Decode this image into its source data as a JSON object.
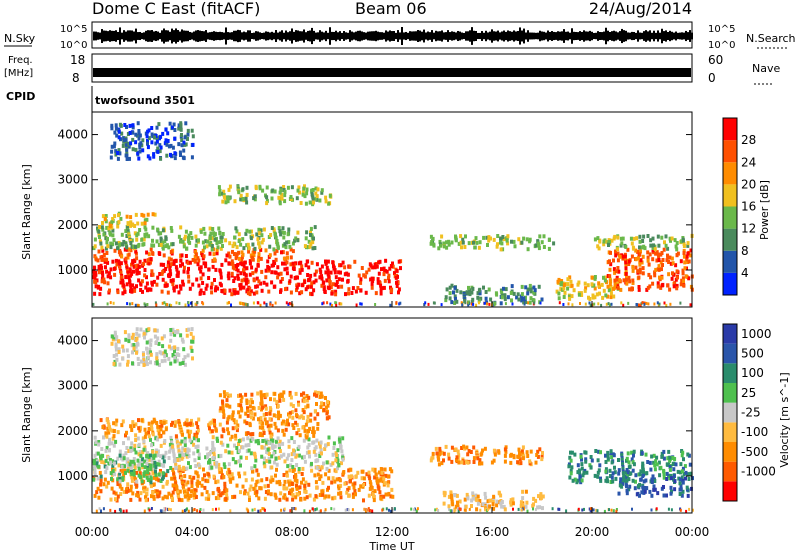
{
  "header": {
    "radar": "Dome C East (fitACF)",
    "beam": "Beam 06",
    "date": "24/Aug/2014"
  },
  "nsky_panel": {
    "label": "N.Sky",
    "right_label": "N.Search",
    "ticks_left": [
      "10^5",
      "10^0"
    ],
    "ticks_right": [
      "10^5",
      "10^0"
    ]
  },
  "freq_panel": {
    "label_line1": "Freq.",
    "label_line2": "[MHz]",
    "ticks_left": [
      "18",
      "8"
    ],
    "ticks_right": [
      "60",
      "0"
    ],
    "right_label": "Nave"
  },
  "cpid_panel": {
    "label": "CPID",
    "program": "twofsound 3501"
  },
  "colors": {
    "power": [
      "#0022ff",
      "#2255aa",
      "#4a8a5c",
      "#6ab84a",
      "#f0c020",
      "#ff8c00",
      "#ff5000",
      "#ff0000"
    ],
    "velocity": [
      "#ff0000",
      "#ff5a00",
      "#ff8c00",
      "#ffbb40",
      "#c8c8c8",
      "#4ec04e",
      "#2a8c6c",
      "#2a55aa",
      "#2a3aa8"
    ]
  },
  "chart_data": {
    "type": "heatmap",
    "xlabel": "Time UT",
    "x_ticks": [
      "00:00",
      "04:00",
      "08:00",
      "12:00",
      "16:00",
      "20:00",
      "00:00"
    ],
    "x_range_hours": [
      0,
      24
    ],
    "panels": [
      {
        "name": "Power",
        "ylabel": "Slant Range [km]",
        "y_ticks": [
          1000,
          2000,
          3000,
          4000
        ],
        "ylim": [
          180,
          4500
        ],
        "colorbar": {
          "label": "Power [dB]",
          "ticks": [
            "4",
            "8",
            "12",
            "16",
            "20",
            "24",
            "28"
          ]
        },
        "blobs": [
          {
            "t": [
              0,
              12.3
            ],
            "r": [
              500,
              1250
            ],
            "level": 7
          },
          {
            "t": [
              0,
              8
            ],
            "r": [
              1250,
              1500
            ],
            "level": 6
          },
          {
            "t": [
              0,
              9
            ],
            "r": [
              1500,
              2000
            ],
            "level": 3
          },
          {
            "t": [
              0.3,
              2.5
            ],
            "r": [
              2000,
              2300
            ],
            "level": 4
          },
          {
            "t": [
              5,
              9.5
            ],
            "r": [
              2500,
              2900
            ],
            "level": 3
          },
          {
            "t": [
              0.7,
              4
            ],
            "r": [
              3500,
              4300
            ],
            "level": 1
          },
          {
            "t": [
              13.5,
              18.5
            ],
            "r": [
              1500,
              1800
            ],
            "level": 3
          },
          {
            "t": [
              14,
              18
            ],
            "r": [
              300,
              700
            ],
            "level": 2
          },
          {
            "t": [
              18.5,
              21
            ],
            "r": [
              400,
              900
            ],
            "level": 4
          },
          {
            "t": [
              20.5,
              24
            ],
            "r": [
              600,
              1500
            ],
            "level": 6
          },
          {
            "t": [
              20,
              24
            ],
            "r": [
              1500,
              1800
            ],
            "level": 3
          }
        ]
      },
      {
        "name": "Velocity",
        "ylabel": "Slant Range [km]",
        "y_ticks": [
          1000,
          2000,
          3000,
          4000
        ],
        "ylim": [
          180,
          4500
        ],
        "colorbar": {
          "label": "Velocity [m s^-1]",
          "ticks": [
            "1000",
            "500",
            "100",
            "25",
            "-25",
            "-100",
            "-500",
            "-1000"
          ]
        },
        "blobs": [
          {
            "t": [
              0,
              12
            ],
            "r": [
              500,
              1200
            ],
            "level": 2
          },
          {
            "t": [
              0,
              10
            ],
            "r": [
              1200,
              1900
            ],
            "level": 4
          },
          {
            "t": [
              0,
              3
            ],
            "r": [
              900,
              1500
            ],
            "level": 5
          },
          {
            "t": [
              0.3,
              9
            ],
            "r": [
              1900,
              2300
            ],
            "level": 2
          },
          {
            "t": [
              5,
              9.5
            ],
            "r": [
              2300,
              2900
            ],
            "level": 2
          },
          {
            "t": [
              0.7,
              4
            ],
            "r": [
              3500,
              4300
            ],
            "level": 4
          },
          {
            "t": [
              13.5,
              18
            ],
            "r": [
              1300,
              1700
            ],
            "level": 2
          },
          {
            "t": [
              14,
              18
            ],
            "r": [
              300,
              700
            ],
            "level": 3
          },
          {
            "t": [
              19,
              24
            ],
            "r": [
              900,
              1600
            ],
            "level": 6
          },
          {
            "t": [
              21,
              24
            ],
            "r": [
              600,
              1000
            ],
            "level": 7
          }
        ]
      }
    ]
  }
}
